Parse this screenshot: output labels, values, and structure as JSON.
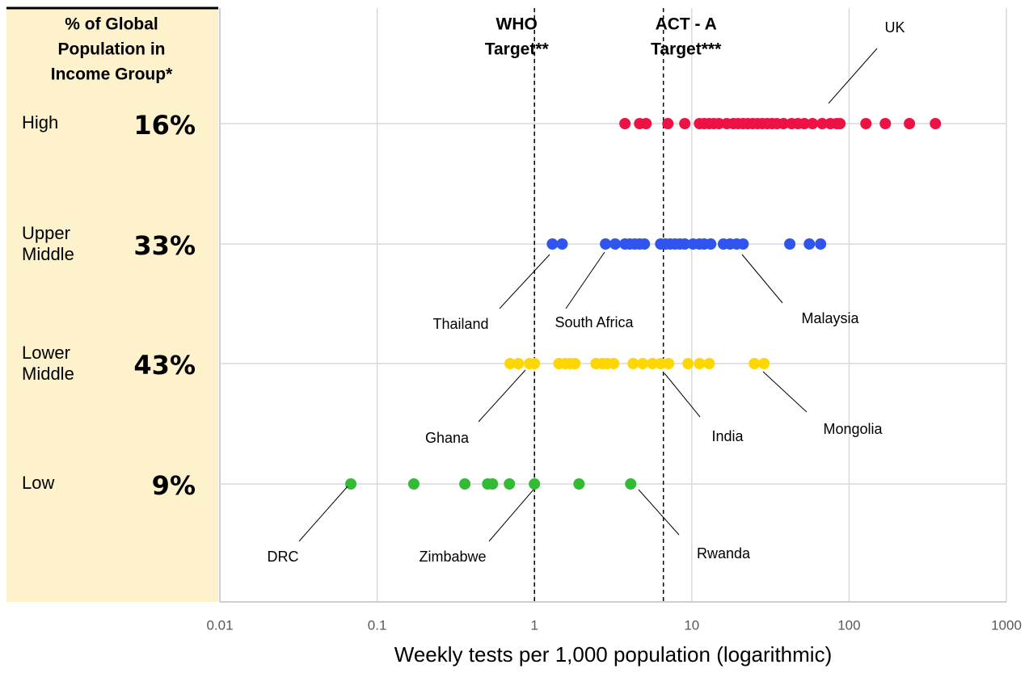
{
  "chart_data": {
    "type": "strip",
    "heading": [
      "% of Global",
      "Population in",
      "Income Group*"
    ],
    "categories": [
      "High",
      "Upper Middle",
      "Lower Middle",
      "Low"
    ],
    "shares": [
      16,
      33,
      43,
      9
    ],
    "share_labels": [
      "16%",
      "33%",
      "43%",
      "9%"
    ],
    "xlabel": "Weekly tests per 1,000 population (logarithmic)",
    "xscale": "log",
    "xlim": [
      0.01,
      1000
    ],
    "xticks": [
      0.01,
      0.1,
      1,
      10,
      100,
      1000
    ],
    "grid": true,
    "reference_lines": [
      {
        "label": [
          "WHO",
          "Target**"
        ],
        "value": 1
      },
      {
        "label": [
          "ACT - A",
          "Target***"
        ],
        "value": 6.6
      }
    ],
    "series": [
      {
        "color": "#ee1144",
        "values": [
          3.76,
          4.66,
          5.12,
          7.05,
          9.03,
          11.2,
          12.0,
          12.9,
          13.8,
          14.9,
          16.7,
          18.4,
          19.7,
          21.2,
          22.7,
          24.4,
          26.2,
          28.1,
          30.2,
          32.4,
          34.8,
          38.3,
          43.1,
          47.3,
          52.0,
          58.6,
          67.5,
          76.0,
          83.5,
          87.5,
          128,
          170,
          242,
          354
        ]
      },
      {
        "color": "#2f55ee",
        "values": [
          1.3,
          1.5,
          2.83,
          3.26,
          3.76,
          4.04,
          4.34,
          4.66,
          5.0,
          6.34,
          6.8,
          7.3,
          7.84,
          8.41,
          9.03,
          10.2,
          11.2,
          12.0,
          13.2,
          15.9,
          17.5,
          19.3,
          21.2,
          42.0,
          55.9,
          65.9
        ]
      },
      {
        "color": "#ffd700",
        "values": [
          0.7,
          0.79,
          0.93,
          1.0,
          1.43,
          1.57,
          1.68,
          1.81,
          2.46,
          2.7,
          2.9,
          3.19,
          4.24,
          4.88,
          5.63,
          6.34,
          7.13,
          9.47,
          11.2,
          12.9,
          25.0,
          28.8
        ]
      },
      {
        "color": "#33bb33",
        "values": [
          0.068,
          0.171,
          0.361,
          0.504,
          0.541,
          0.693,
          1.0,
          1.92,
          4.09
        ]
      }
    ],
    "annotations": [
      "UK",
      "Thailand",
      "South Africa",
      "Malaysia",
      "Ghana",
      "India",
      "Mongolia",
      "DRC",
      "Zimbabwe",
      "Rwanda"
    ]
  }
}
